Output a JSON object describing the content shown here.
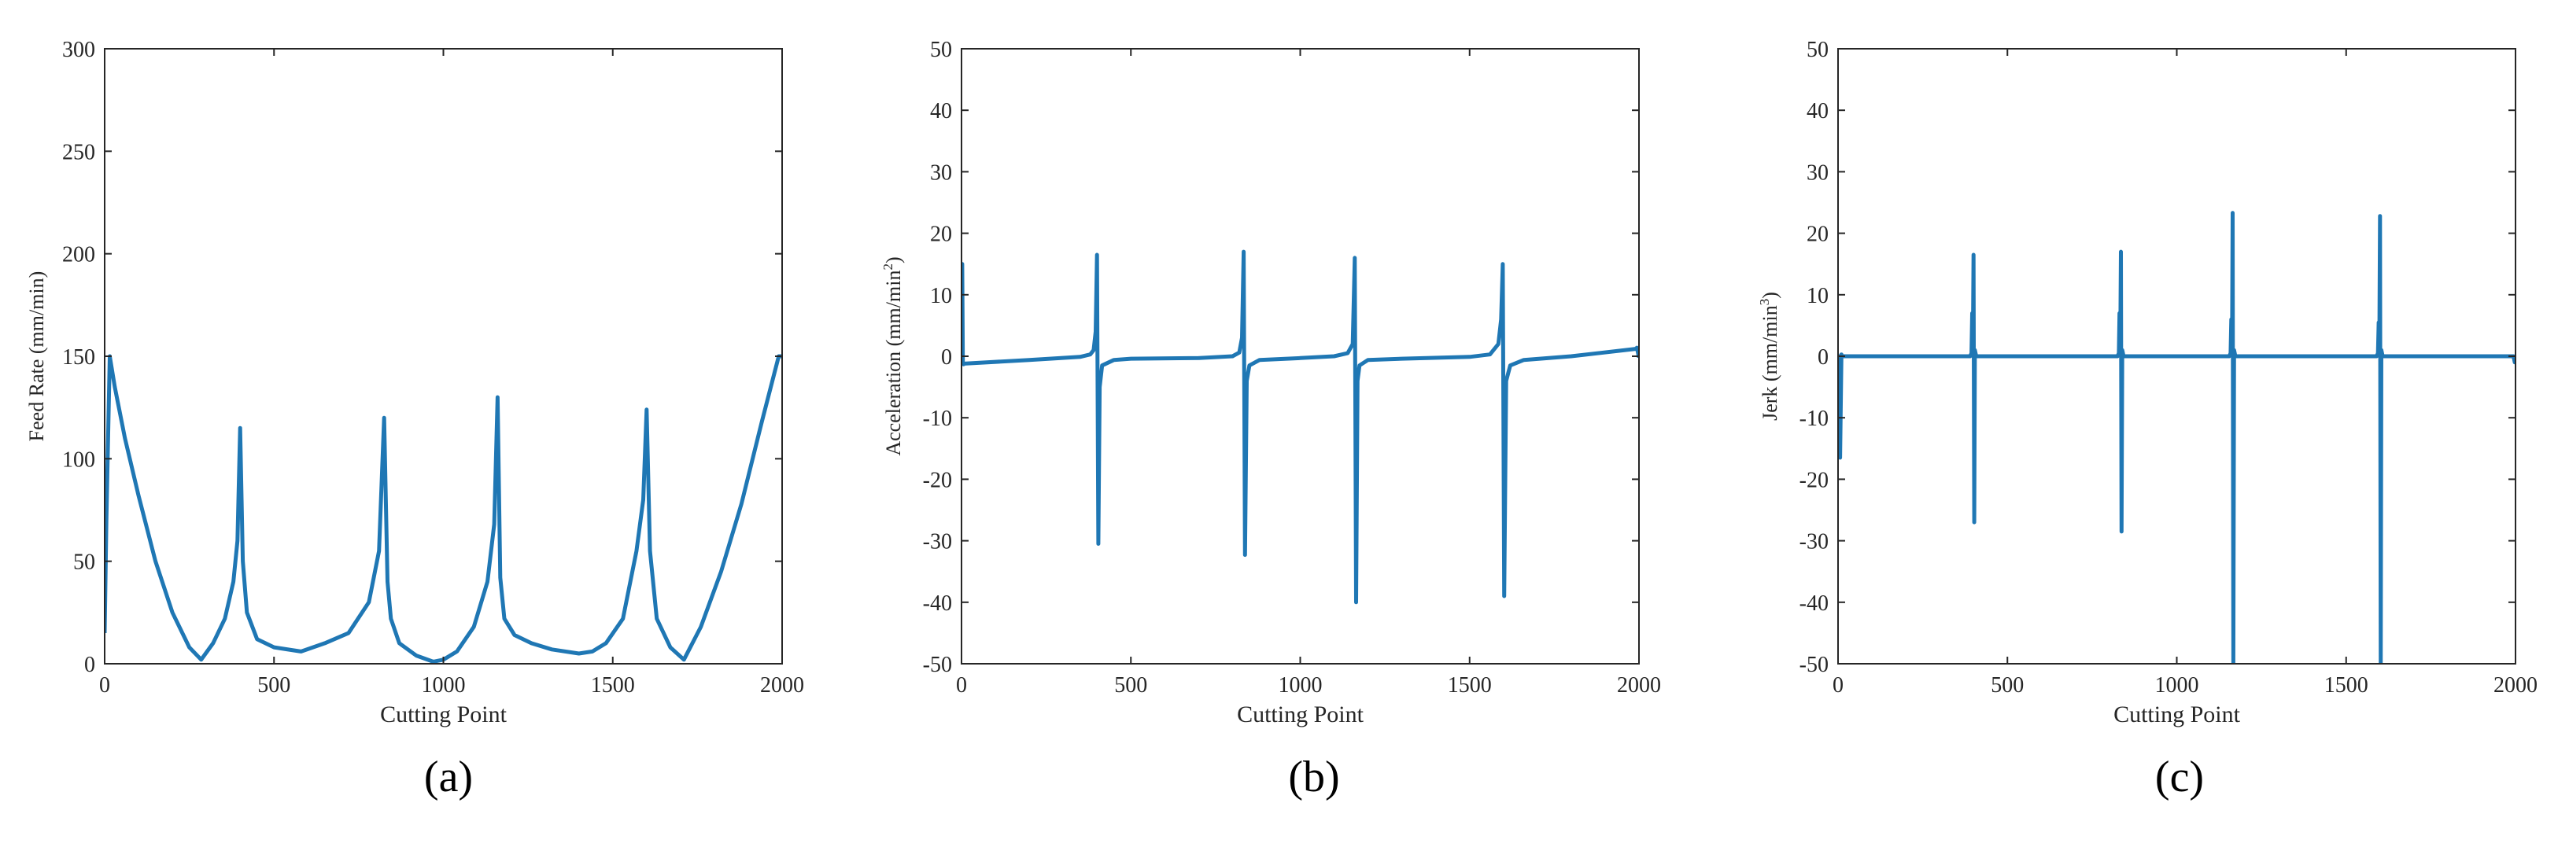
{
  "chart_data": [
    {
      "type": "line",
      "caption": "(a)",
      "xlabel": "Cutting Point",
      "ylabel": "Feed Rate (mm/min)",
      "xlim": [
        0,
        2000
      ],
      "ylim": [
        0,
        300
      ],
      "xticks": [
        0,
        500,
        1000,
        1500,
        2000
      ],
      "yticks": [
        0,
        50,
        100,
        150,
        200,
        250,
        300
      ],
      "grid": false,
      "line_color": "#1f77b4",
      "series": [
        {
          "x": [
            0,
            5,
            15,
            30,
            60,
            100,
            150,
            200,
            250,
            285,
            320,
            355,
            380,
            392,
            400,
            408,
            420,
            450,
            500,
            580,
            650,
            720,
            780,
            810,
            825,
            835,
            845,
            870,
            920,
            970,
            1000,
            1040,
            1090,
            1130,
            1150,
            1160,
            1168,
            1180,
            1210,
            1260,
            1320,
            1400,
            1440,
            1480,
            1530,
            1570,
            1590,
            1600,
            1610,
            1630,
            1670,
            1710,
            1760,
            1820,
            1880,
            1940,
            1990,
            2000
          ],
          "y": [
            15,
            70,
            150,
            135,
            110,
            82,
            50,
            25,
            8,
            2,
            10,
            22,
            40,
            60,
            115,
            50,
            25,
            12,
            8,
            6,
            10,
            15,
            30,
            55,
            120,
            40,
            22,
            10,
            4,
            1,
            2,
            6,
            18,
            40,
            68,
            130,
            42,
            22,
            14,
            10,
            7,
            5,
            6,
            10,
            22,
            55,
            80,
            124,
            55,
            22,
            8,
            2,
            18,
            45,
            78,
            118,
            150,
            150
          ]
        }
      ]
    },
    {
      "type": "line",
      "caption": "(b)",
      "xlabel": "Cutting Point",
      "ylabel": "Acceleration (mm/min",
      "ylabel_sup": "2",
      "ylabel_tail": ")",
      "xlim": [
        0,
        2000
      ],
      "ylim": [
        -50,
        50
      ],
      "xticks": [
        0,
        500,
        1000,
        1500,
        2000
      ],
      "yticks": [
        -50,
        -40,
        -30,
        -20,
        -10,
        0,
        10,
        20,
        30,
        40,
        50
      ],
      "grid": false,
      "line_color": "#1f77b4",
      "series": [
        {
          "x": [
            0,
            2,
            4,
            6,
            8,
            200,
            350,
            380,
            390,
            396,
            400,
            404,
            408,
            415,
            450,
            500,
            700,
            800,
            820,
            828,
            833,
            837,
            842,
            850,
            880,
            1000,
            1100,
            1140,
            1155,
            1161,
            1165,
            1169,
            1175,
            1200,
            1300,
            1500,
            1560,
            1585,
            1593,
            1598,
            1602,
            1608,
            1620,
            1660,
            1800,
            1990,
            1994,
            2000
          ],
          "y": [
            15,
            15,
            -1,
            -1.3,
            -1.2,
            -0.6,
            -0.1,
            0.3,
            1,
            4,
            16.5,
            -30.5,
            -5,
            -1.5,
            -0.6,
            -0.4,
            -0.3,
            0,
            0.6,
            3,
            17,
            -32.3,
            -4,
            -1.5,
            -0.6,
            -0.3,
            0,
            0.5,
            2,
            16,
            -40,
            -4,
            -1.5,
            -0.6,
            -0.4,
            -0.1,
            0.3,
            2,
            6,
            15,
            -39,
            -4,
            -1.5,
            -0.6,
            0,
            1.2,
            1.4,
            -0.2
          ]
        }
      ]
    },
    {
      "type": "line",
      "caption": "(c)",
      "xlabel": "Cutting Point",
      "ylabel": "Jerk (mm/min",
      "ylabel_sup": "3",
      "ylabel_tail": ")",
      "xlim": [
        0,
        2000
      ],
      "ylim": [
        -50,
        50
      ],
      "xticks": [
        0,
        500,
        1000,
        1500,
        2000
      ],
      "yticks": [
        -50,
        -40,
        -30,
        -20,
        -10,
        0,
        10,
        20,
        30,
        40,
        50
      ],
      "grid": false,
      "line_color": "#1f77b4",
      "series": [
        {
          "x": [
            0,
            4,
            6,
            10,
            12,
            390,
            394,
            396,
            398,
            400,
            402,
            404,
            408,
            825,
            829,
            831,
            833,
            835,
            837,
            839,
            843,
            1155,
            1159,
            1161,
            1163,
            1165,
            1167,
            1169,
            1173,
            1590,
            1594,
            1596,
            1598,
            1600,
            1602,
            1604,
            1608,
            1990,
            1994,
            1998,
            2000
          ],
          "y": [
            0,
            0,
            -16.5,
            0.3,
            0,
            0,
            0.5,
            7,
            0.5,
            16.5,
            -27,
            1,
            0,
            0,
            0.5,
            7,
            0.5,
            17,
            -28.5,
            1,
            0,
            0,
            0.5,
            6,
            0.5,
            23.3,
            -50,
            1,
            0,
            0,
            0.5,
            5.5,
            0.5,
            22.8,
            -50,
            1,
            0,
            0,
            0,
            -1,
            -0.3
          ]
        }
      ]
    }
  ]
}
